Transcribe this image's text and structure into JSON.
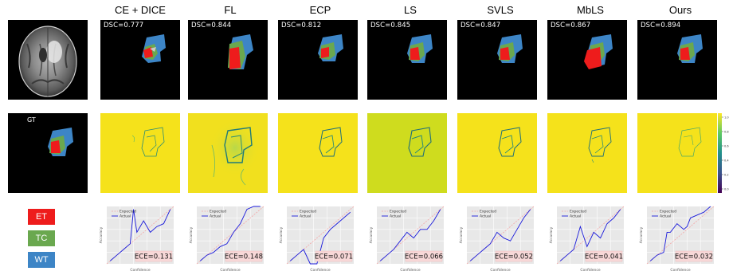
{
  "methods": [
    "CE + DICE",
    "FL",
    "ECP",
    "LS",
    "SVLS",
    "MbLS",
    "Ours"
  ],
  "dsc_values": [
    "DSC=0.777",
    "DSC=0.844",
    "DSC=0.812",
    "DSC=0.845",
    "DSC=0.847",
    "DSC=0.867",
    "DSC=0.894"
  ],
  "gt_label": "GT",
  "legend": [
    {
      "label": "ET",
      "color": "#ee1c1c"
    },
    {
      "label": "TC",
      "color": "#6aa84f"
    },
    {
      "label": "WT",
      "color": "#3d85c6"
    }
  ],
  "calibration": {
    "xlabel": "Confidence",
    "ylabel": "Accuracy",
    "legend_expected": "Expected",
    "legend_actual": "Actual",
    "ece_values": [
      "ECE=0.131",
      "ECE=0.148",
      "ECE=0.071",
      "ECE=0.066",
      "ECE=0.052",
      "ECE=0.041",
      "ECE=0.032"
    ]
  },
  "colorbar_ticks": [
    "1.0",
    "0.8",
    "0.6",
    "0.4",
    "0.2",
    "0.0"
  ],
  "chart_data": [
    {
      "type": "line",
      "method": "CE + DICE",
      "ece": 0.131,
      "series": [
        {
          "name": "Expected",
          "x": [
            0,
            1
          ],
          "values": [
            0,
            1
          ]
        },
        {
          "name": "Actual",
          "x": [
            0.05,
            0.15,
            0.25,
            0.35,
            0.4,
            0.45,
            0.55,
            0.65,
            0.75,
            0.85,
            0.95
          ],
          "values": [
            0.05,
            0.15,
            0.25,
            0.35,
            0.95,
            0.55,
            0.75,
            0.55,
            0.65,
            0.7,
            0.95
          ]
        }
      ]
    },
    {
      "type": "line",
      "method": "FL",
      "ece": 0.148,
      "series": [
        {
          "name": "Expected",
          "x": [
            0,
            1
          ],
          "values": [
            0,
            1
          ]
        },
        {
          "name": "Actual",
          "x": [
            0.05,
            0.15,
            0.25,
            0.35,
            0.45,
            0.55,
            0.65,
            0.75,
            0.85,
            0.95
          ],
          "values": [
            0.05,
            0.15,
            0.2,
            0.3,
            0.35,
            0.55,
            0.7,
            0.95,
            1.0,
            1.0
          ]
        }
      ]
    },
    {
      "type": "line",
      "method": "ECP",
      "ece": 0.071,
      "series": [
        {
          "name": "Expected",
          "x": [
            0,
            1
          ],
          "values": [
            0,
            1
          ]
        },
        {
          "name": "Actual",
          "x": [
            0.05,
            0.15,
            0.25,
            0.35,
            0.45,
            0.55,
            0.65,
            0.75,
            0.85,
            0.95
          ],
          "values": [
            0.05,
            0.15,
            0.25,
            0.0,
            0.0,
            0.45,
            0.6,
            0.7,
            0.8,
            0.9
          ]
        }
      ]
    },
    {
      "type": "line",
      "method": "LS",
      "ece": 0.066,
      "series": [
        {
          "name": "Expected",
          "x": [
            0,
            1
          ],
          "values": [
            0,
            1
          ]
        },
        {
          "name": "Actual",
          "x": [
            0.05,
            0.15,
            0.25,
            0.35,
            0.45,
            0.55,
            0.65,
            0.75,
            0.85,
            0.95
          ],
          "values": [
            0.05,
            0.15,
            0.25,
            0.4,
            0.55,
            0.45,
            0.6,
            0.6,
            0.75,
            0.95
          ]
        }
      ]
    },
    {
      "type": "line",
      "method": "SVLS",
      "ece": 0.052,
      "series": [
        {
          "name": "Expected",
          "x": [
            0,
            1
          ],
          "values": [
            0,
            1
          ]
        },
        {
          "name": "Actual",
          "x": [
            0.05,
            0.15,
            0.25,
            0.35,
            0.45,
            0.55,
            0.65,
            0.75,
            0.85,
            0.95
          ],
          "values": [
            0.05,
            0.15,
            0.25,
            0.35,
            0.55,
            0.45,
            0.4,
            0.6,
            0.8,
            0.95
          ]
        }
      ]
    },
    {
      "type": "line",
      "method": "MbLS",
      "ece": 0.041,
      "series": [
        {
          "name": "Expected",
          "x": [
            0,
            1
          ],
          "values": [
            0,
            1
          ]
        },
        {
          "name": "Actual",
          "x": [
            0.05,
            0.15,
            0.25,
            0.35,
            0.45,
            0.55,
            0.65,
            0.75,
            0.85,
            0.95
          ],
          "values": [
            0.05,
            0.15,
            0.25,
            0.65,
            0.3,
            0.55,
            0.45,
            0.7,
            0.8,
            0.95
          ]
        }
      ]
    },
    {
      "type": "line",
      "method": "Ours",
      "ece": 0.032,
      "series": [
        {
          "name": "Expected",
          "x": [
            0,
            1
          ],
          "values": [
            0,
            1
          ]
        },
        {
          "name": "Actual",
          "x": [
            0.05,
            0.15,
            0.25,
            0.3,
            0.35,
            0.45,
            0.55,
            0.6,
            0.65,
            0.75,
            0.85,
            0.95
          ],
          "values": [
            0.05,
            0.15,
            0.2,
            0.55,
            0.55,
            0.7,
            0.6,
            0.65,
            0.8,
            0.85,
            0.9,
            1.0
          ]
        }
      ]
    }
  ]
}
